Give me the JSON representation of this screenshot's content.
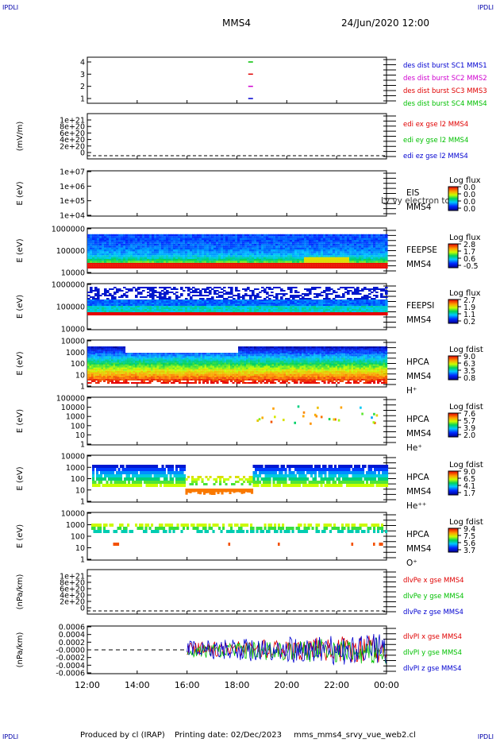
{
  "corner_labels": {
    "top_left": "IPDLI",
    "top_right": "IPDLI",
    "bottom_left": "IPDLI",
    "bottom_right": "IPDLI"
  },
  "header": {
    "spacecraft": "MMS4",
    "datetime": "24/Jun/2020 12:00"
  },
  "footer": {
    "credit": "Produced by cl (IRAP)",
    "printing_date": "Printing date: 02/Dec/2023",
    "script_name": "mms_mms4_srvy_vue_web2.cl"
  },
  "colors": {
    "red": "#e00000",
    "magenta": "#d000d0",
    "green": "#00c000",
    "blue": "#0000d0"
  },
  "chart_data": {
    "type": "multi-panel",
    "x_axis": {
      "range": [
        "12:00",
        "00:00"
      ],
      "ticks": [
        "12:00",
        "14:00",
        "16:00",
        "18:00",
        "20:00",
        "22:00",
        "00:00"
      ]
    },
    "panels": [
      {
        "id": "burst",
        "type": "scatter",
        "ylabel": "",
        "yticks": [
          "1",
          "2",
          "3",
          "4"
        ],
        "legend": [
          {
            "label": "des dist burst SC1 MMS1",
            "color": "#0000d0"
          },
          {
            "label": "des dist burst SC2 MMS2",
            "color": "#d000d0"
          },
          {
            "label": "des dist burst SC3 MMS3",
            "color": "#e00000"
          },
          {
            "label": "des dist burst SC4 MMS4",
            "color": "#00c000"
          }
        ],
        "marks": [
          {
            "hour": 18.55,
            "sc": 1
          },
          {
            "hour": 18.55,
            "sc": 2
          },
          {
            "hour": 18.55,
            "sc": 3
          },
          {
            "hour": 18.55,
            "sc": 4
          }
        ]
      },
      {
        "id": "efield",
        "type": "line",
        "ylabel": "(mV/m)",
        "yticks": [
          "1e+21",
          "8e+20",
          "6e+20",
          "4e+20",
          "2e+20",
          "0"
        ],
        "legend": [
          {
            "label": "edi ex gse l2 MMS4",
            "color": "#e00000"
          },
          {
            "label": "edi ey gse l2 MMS4",
            "color": "#00c000"
          },
          {
            "label": "edi ez gse l2 MMS4",
            "color": "#0000d0"
          }
        ]
      },
      {
        "id": "eis",
        "type": "heatmap",
        "ylabel": "E (eV)",
        "yticks": [
          "1e+07",
          "1e+06",
          "1e+05",
          "1e+04"
        ],
        "side_labels": [
          "EIS",
          "MMS4"
        ],
        "overlay_text": "Ly vy electron to",
        "colorbar": {
          "title": "Log flux",
          "ticks": [
            "0.0",
            "0.0",
            "0.0",
            "0.0"
          ]
        }
      },
      {
        "id": "feepse",
        "type": "heatmap",
        "ylabel": "E (eV)",
        "yticks": [
          "1000000",
          "100000",
          "10000"
        ],
        "side_labels": [
          "FEEPSE",
          "MMS4"
        ],
        "colorbar": {
          "title": "Log flux",
          "ticks": [
            "2.8",
            "1.7",
            "0.6",
            "-0.5"
          ]
        }
      },
      {
        "id": "feepsi",
        "type": "heatmap",
        "ylabel": "E (eV)",
        "yticks": [
          "1000000",
          "100000",
          "10000"
        ],
        "side_labels": [
          "FEEPSI",
          "MMS4"
        ],
        "colorbar": {
          "title": "Log flux",
          "ticks": [
            "2.7",
            "1.9",
            "1.1",
            "0.2"
          ]
        }
      },
      {
        "id": "hpca_h",
        "type": "heatmap",
        "ylabel": "E (eV)",
        "yticks": [
          "10000",
          "1000",
          "100",
          "10",
          "1"
        ],
        "side_labels": [
          "HPCA",
          "MMS4",
          "H⁺"
        ],
        "colorbar": {
          "title": "Log fdist",
          "ticks": [
            "9.0",
            "6.3",
            "3.5",
            "0.8"
          ]
        }
      },
      {
        "id": "hpca_he",
        "type": "heatmap",
        "ylabel": "E (eV)",
        "yticks": [
          "100000",
          "10000",
          "1000",
          "100",
          "10",
          "1"
        ],
        "side_labels": [
          "HPCA",
          "MMS4",
          "He⁺"
        ],
        "colorbar": {
          "title": "Log fdist",
          "ticks": [
            "7.6",
            "5.7",
            "3.9",
            "2.0"
          ]
        }
      },
      {
        "id": "hpca_hepp",
        "type": "heatmap",
        "ylabel": "E (eV)",
        "yticks": [
          "10000",
          "1000",
          "100",
          "10",
          "1"
        ],
        "side_labels": [
          "HPCA",
          "MMS4",
          "He⁺⁺"
        ],
        "colorbar": {
          "title": "Log fdist",
          "ticks": [
            "9.0",
            "6.5",
            "4.1",
            "1.7"
          ]
        }
      },
      {
        "id": "hpca_o",
        "type": "heatmap",
        "ylabel": "E (eV)",
        "yticks": [
          "10000",
          "1000",
          "100",
          "10",
          "1"
        ],
        "side_labels": [
          "HPCA",
          "MMS4",
          "O⁺"
        ],
        "colorbar": {
          "title": "Log fdist",
          "ticks": [
            "9.4",
            "7.5",
            "5.6",
            "3.7"
          ]
        }
      },
      {
        "id": "dpe",
        "type": "line",
        "ylabel": "(nPa/km)",
        "yticks": [
          "1e+21",
          "8e+20",
          "6e+20",
          "4e+20",
          "2e+20",
          "0"
        ],
        "legend": [
          {
            "label": "dlvPe x gse MMS4",
            "color": "#e00000"
          },
          {
            "label": "dlvPe y gse MMS4",
            "color": "#00c000"
          },
          {
            "label": "dlvPe z gse MMS4",
            "color": "#0000d0"
          }
        ]
      },
      {
        "id": "dpi",
        "type": "line",
        "ylabel": "(nPa/km)",
        "yticks": [
          "0.0006",
          "0.0004",
          "0.0002",
          "-0.0000",
          "-0.0002",
          "-0.0004",
          "-0.0006"
        ],
        "ylim": [
          -0.0006,
          0.0006
        ],
        "data_start_hour": 16.0,
        "legend": [
          {
            "label": "dlvPI x gse MMS4",
            "color": "#e00000"
          },
          {
            "label": "dlvPI y gse MMS4",
            "color": "#00c000"
          },
          {
            "label": "dlvPI z gse MMS4",
            "color": "#0000d0"
          }
        ]
      }
    ]
  }
}
